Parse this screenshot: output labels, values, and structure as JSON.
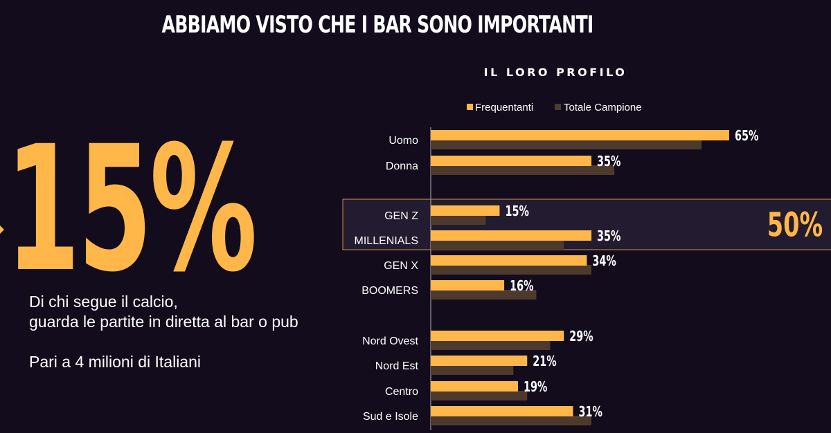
{
  "header": {
    "title": "ABBIAMO VISTO CHE I BAR SONO IMPORTANTI"
  },
  "highlight": {
    "value": "15%",
    "line1": "Di chi segue il calcio,",
    "line2": "guarda le partite in diretta al bar o pub",
    "note": "Pari a 4 milioni di Italiani"
  },
  "colors": {
    "background": "#120c1d",
    "frequentanti": "#ffb74a",
    "totale": "#4d3a2c",
    "accent": "#ffb74a"
  },
  "chart_data": {
    "type": "bar",
    "orientation": "horizontal",
    "title": "IL LORO PROFILO",
    "legend": [
      "Frequentanti",
      "Totale Campione"
    ],
    "legend_position": "top",
    "categories": [
      "Uomo",
      "Donna",
      "GEN Z",
      "MILLENIALS",
      "GEN X",
      "BOOMERS",
      "Nord Ovest",
      "Nord Est",
      "Centro",
      "Sud e Isole"
    ],
    "groups": [
      [
        "Uomo",
        "Donna"
      ],
      [
        "GEN Z",
        "MILLENIALS",
        "GEN X",
        "BOOMERS"
      ],
      [
        "Nord Ovest",
        "Nord Est",
        "Centro",
        "Sud e Isole"
      ]
    ],
    "series": [
      {
        "name": "Frequentanti",
        "values": [
          65,
          35,
          15,
          35,
          34,
          16,
          29,
          21,
          19,
          31
        ]
      },
      {
        "name": "Totale Campione",
        "values": [
          59,
          40,
          12,
          29,
          35,
          23,
          26,
          18,
          21,
          35
        ]
      }
    ],
    "value_labels": [
      "65%",
      "35%",
      "15%",
      "35%",
      "34%",
      "16%",
      "29%",
      "21%",
      "19%",
      "31%"
    ],
    "xlim": [
      0,
      70
    ],
    "highlight_box": {
      "categories": [
        "GEN Z",
        "MILLENIALS"
      ],
      "label": "50%"
    }
  }
}
